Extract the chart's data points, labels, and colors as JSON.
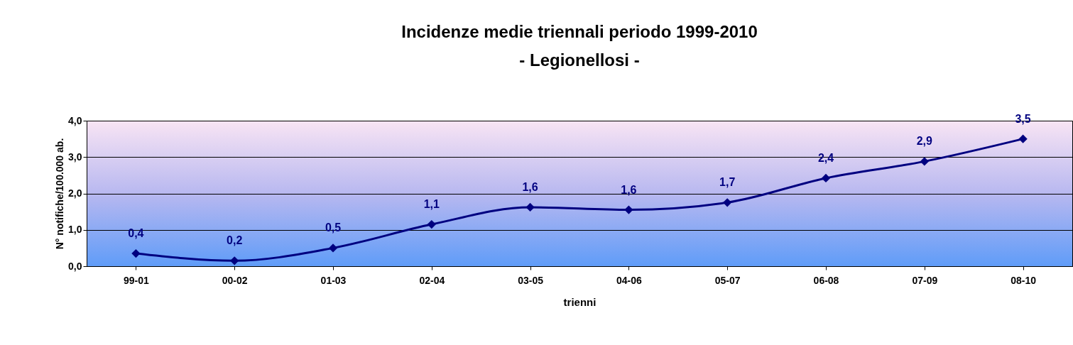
{
  "chart_data": {
    "type": "line",
    "title": "Incidenze medie triennali periodo 1999-2010\n- Legionellosi -",
    "xlabel": "trienni",
    "ylabel": "N° notifiche/100.000 ab.",
    "categories": [
      "99-01",
      "00-02",
      "01-03",
      "02-04",
      "03-05",
      "04-06",
      "05-07",
      "06-08",
      "07-09",
      "08-10"
    ],
    "series": [
      {
        "color": "#000080",
        "values": [
          0.35,
          0.15,
          0.5,
          1.15,
          1.62,
          1.55,
          1.75,
          2.42,
          2.88,
          3.5
        ],
        "value_labels": [
          "0,4",
          "0,2",
          "0,5",
          "1,1",
          "1,6",
          "1,6",
          "1,7",
          "2,4",
          "2,9",
          "3,5"
        ]
      }
    ],
    "ylim": [
      0,
      4
    ],
    "yticks": [
      {
        "value": 0,
        "label": "0,0"
      },
      {
        "value": 1,
        "label": "1,0"
      },
      {
        "value": 2,
        "label": "2,0"
      },
      {
        "value": 3,
        "label": "3,0"
      },
      {
        "value": 4,
        "label": "4,0"
      }
    ],
    "grid": "y",
    "marker": "diamond",
    "line_style": "solid"
  }
}
